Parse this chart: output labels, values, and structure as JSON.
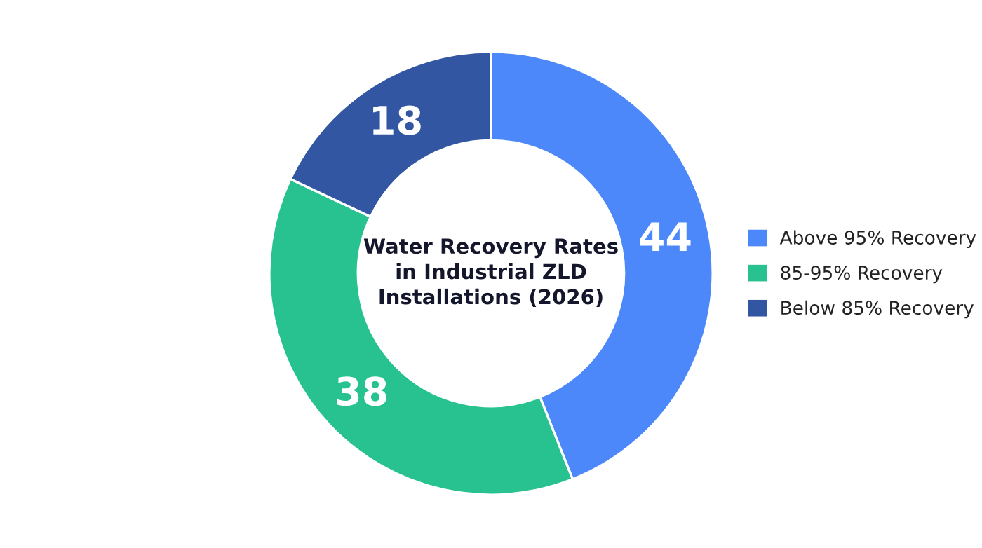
{
  "chart_data": {
    "type": "donut",
    "title": "Water Recovery Rates\nin Industrial ZLD\nInstallations (2026)",
    "categories": [
      "Above 95% Recovery",
      "85-95% Recovery",
      "Below 85% Recovery"
    ],
    "values": [
      44,
      38,
      18
    ],
    "colors": [
      "#4d88fa",
      "#27c290",
      "#3356a3"
    ],
    "data_labels": true,
    "legend": "right"
  }
}
